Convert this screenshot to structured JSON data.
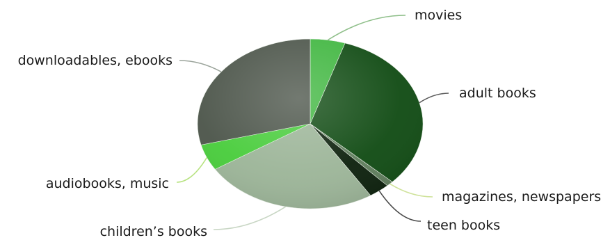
{
  "chart_data": {
    "type": "pie",
    "title": "",
    "categories": [
      "movies",
      "adult books",
      "magazines, newspapers",
      "teen books",
      "children’s books",
      "audiobooks, music",
      "downloadables, ebooks"
    ],
    "values": [
      5,
      32,
      1,
      3,
      25,
      5,
      29
    ],
    "colors": [
      "#3fb63f",
      "#0f4a12",
      "#5f7d5c",
      "#0b1f0b",
      "#9bb497",
      "#47cc3a",
      "#4b5449"
    ],
    "leader_colors": [
      "#8fbf8a",
      "#5a5a5a",
      "#cfe29a",
      "#4a4a4a",
      "#c8d6c4",
      "#b6e27e",
      "#9aa39a"
    ],
    "legend": "callout labels",
    "perspective": "3d-tilted"
  }
}
